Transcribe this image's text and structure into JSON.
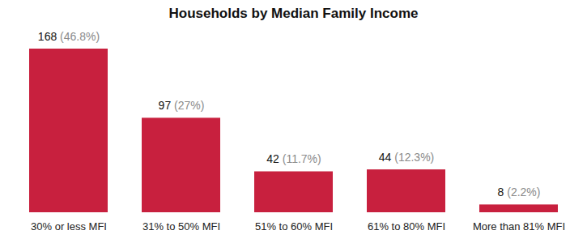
{
  "chart_data": {
    "type": "bar",
    "title": "Households by Median Family Income",
    "categories": [
      "30% or less MFI",
      "31% to 50% MFI",
      "51% to 60% MFI",
      "61% to 80% MFI",
      "More than 81% MFI"
    ],
    "values": [
      168,
      97,
      42,
      44,
      8
    ],
    "value_labels": [
      "168 (46.8%)",
      "97 (27%)",
      "42 (11.7%)",
      "44 (12.3%)",
      "8 (2.2%)"
    ],
    "color": "#c8203e",
    "data_labels": true,
    "tick_labels": "x"
  }
}
